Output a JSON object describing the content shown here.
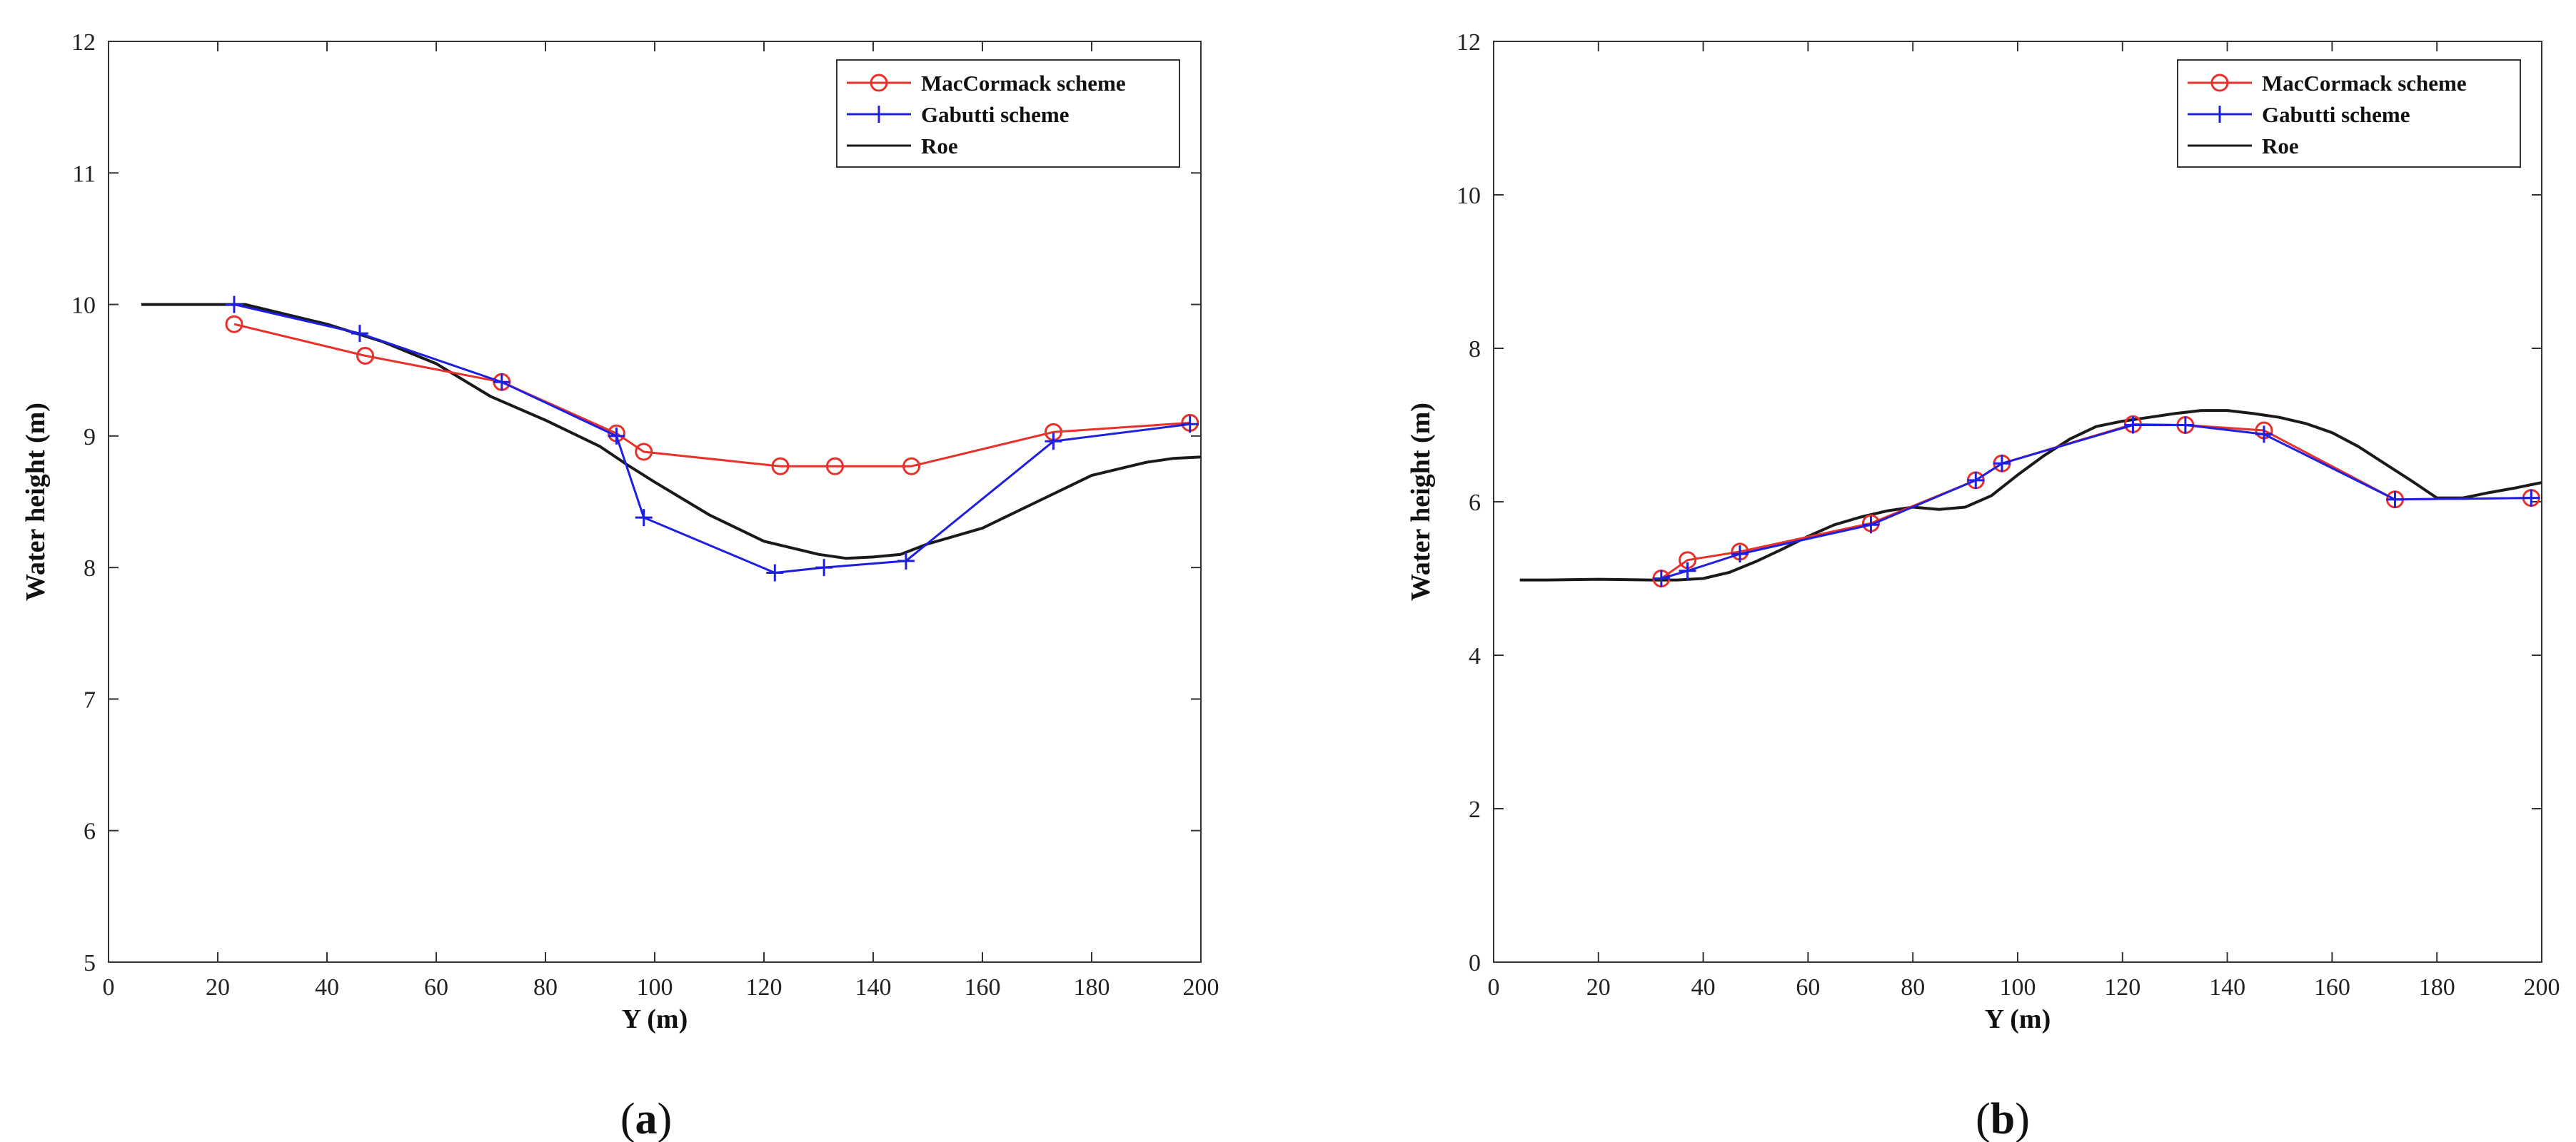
{
  "colors": {
    "maccormack": "#e8312a",
    "gabutti": "#1f1fe0",
    "roe": "#1a1a1a",
    "axis": "#333333"
  },
  "chart_data": [
    {
      "type": "line",
      "panel_label": "a",
      "xlabel": "Y (m)",
      "ylabel": "Water height (m)",
      "xlim": [
        0,
        200
      ],
      "ylim": [
        5,
        12
      ],
      "xticks": [
        0,
        20,
        40,
        60,
        80,
        100,
        120,
        140,
        160,
        180,
        200
      ],
      "yticks": [
        5,
        6,
        7,
        8,
        9,
        10,
        11,
        12
      ],
      "legend_position": "top-right",
      "grid": false,
      "series": [
        {
          "name": "MacCormack scheme",
          "color_key": "maccormack",
          "marker": "circle",
          "x": [
            23,
            47,
            72,
            93,
            98,
            123,
            133,
            147,
            173,
            198
          ],
          "y": [
            9.85,
            9.61,
            9.41,
            9.02,
            8.88,
            8.77,
            8.77,
            8.77,
            9.03,
            9.1
          ]
        },
        {
          "name": "Gabutti scheme",
          "color_key": "gabutti",
          "marker": "plus",
          "x": [
            23,
            46,
            72,
            93,
            98,
            122,
            131,
            146,
            173,
            198
          ],
          "y": [
            10.0,
            9.78,
            9.41,
            9.0,
            8.38,
            7.96,
            8.0,
            8.05,
            8.96,
            9.09
          ]
        },
        {
          "name": "Roe",
          "color_key": "roe",
          "marker": "none",
          "x": [
            6,
            10,
            20,
            25,
            30,
            40,
            50,
            60,
            70,
            80,
            90,
            95,
            100,
            110,
            120,
            130,
            135,
            140,
            145,
            150,
            160,
            170,
            180,
            190,
            195,
            200
          ],
          "y": [
            10.0,
            10.0,
            10.0,
            10.0,
            9.95,
            9.85,
            9.72,
            9.55,
            9.3,
            9.12,
            8.92,
            8.78,
            8.65,
            8.4,
            8.2,
            8.1,
            8.07,
            8.08,
            8.1,
            8.18,
            8.3,
            8.5,
            8.7,
            8.8,
            8.83,
            8.84
          ]
        }
      ]
    },
    {
      "type": "line",
      "panel_label": "b",
      "xlabel": "Y (m)",
      "ylabel": "Water height (m)",
      "xlim": [
        0,
        200
      ],
      "ylim": [
        0,
        12
      ],
      "xticks": [
        0,
        20,
        40,
        60,
        80,
        100,
        120,
        140,
        160,
        180,
        200
      ],
      "yticks": [
        0,
        2,
        4,
        6,
        8,
        10,
        12
      ],
      "legend_position": "top-right",
      "grid": false,
      "series": [
        {
          "name": "MacCormack scheme",
          "color_key": "maccormack",
          "marker": "circle",
          "x": [
            32,
            37,
            47,
            72,
            92,
            97,
            122,
            132,
            147,
            172,
            198
          ],
          "y": [
            5.0,
            5.24,
            5.35,
            5.72,
            6.28,
            6.5,
            7.01,
            7.0,
            6.93,
            6.03,
            6.05
          ]
        },
        {
          "name": "Gabutti scheme",
          "color_key": "gabutti",
          "marker": "plus",
          "x": [
            32,
            37,
            47,
            72,
            92,
            97,
            122,
            132,
            147,
            172,
            198
          ],
          "y": [
            5.0,
            5.1,
            5.32,
            5.7,
            6.28,
            6.5,
            7.0,
            7.0,
            6.88,
            6.03,
            6.05
          ]
        },
        {
          "name": "Roe",
          "color_key": "roe",
          "marker": "none",
          "x": [
            5,
            10,
            20,
            30,
            35,
            40,
            45,
            50,
            55,
            60,
            65,
            70,
            75,
            80,
            85,
            90,
            95,
            100,
            105,
            110,
            115,
            120,
            125,
            130,
            135,
            140,
            145,
            150,
            155,
            160,
            165,
            170,
            175,
            180,
            185,
            190,
            195,
            200
          ],
          "y": [
            4.98,
            4.98,
            4.99,
            4.98,
            4.98,
            5.0,
            5.08,
            5.22,
            5.38,
            5.55,
            5.7,
            5.8,
            5.88,
            5.93,
            5.9,
            5.93,
            6.08,
            6.35,
            6.6,
            6.82,
            6.98,
            7.05,
            7.1,
            7.15,
            7.19,
            7.19,
            7.15,
            7.1,
            7.02,
            6.9,
            6.72,
            6.5,
            6.28,
            6.05,
            6.05,
            6.12,
            6.18,
            6.25
          ]
        }
      ]
    }
  ]
}
